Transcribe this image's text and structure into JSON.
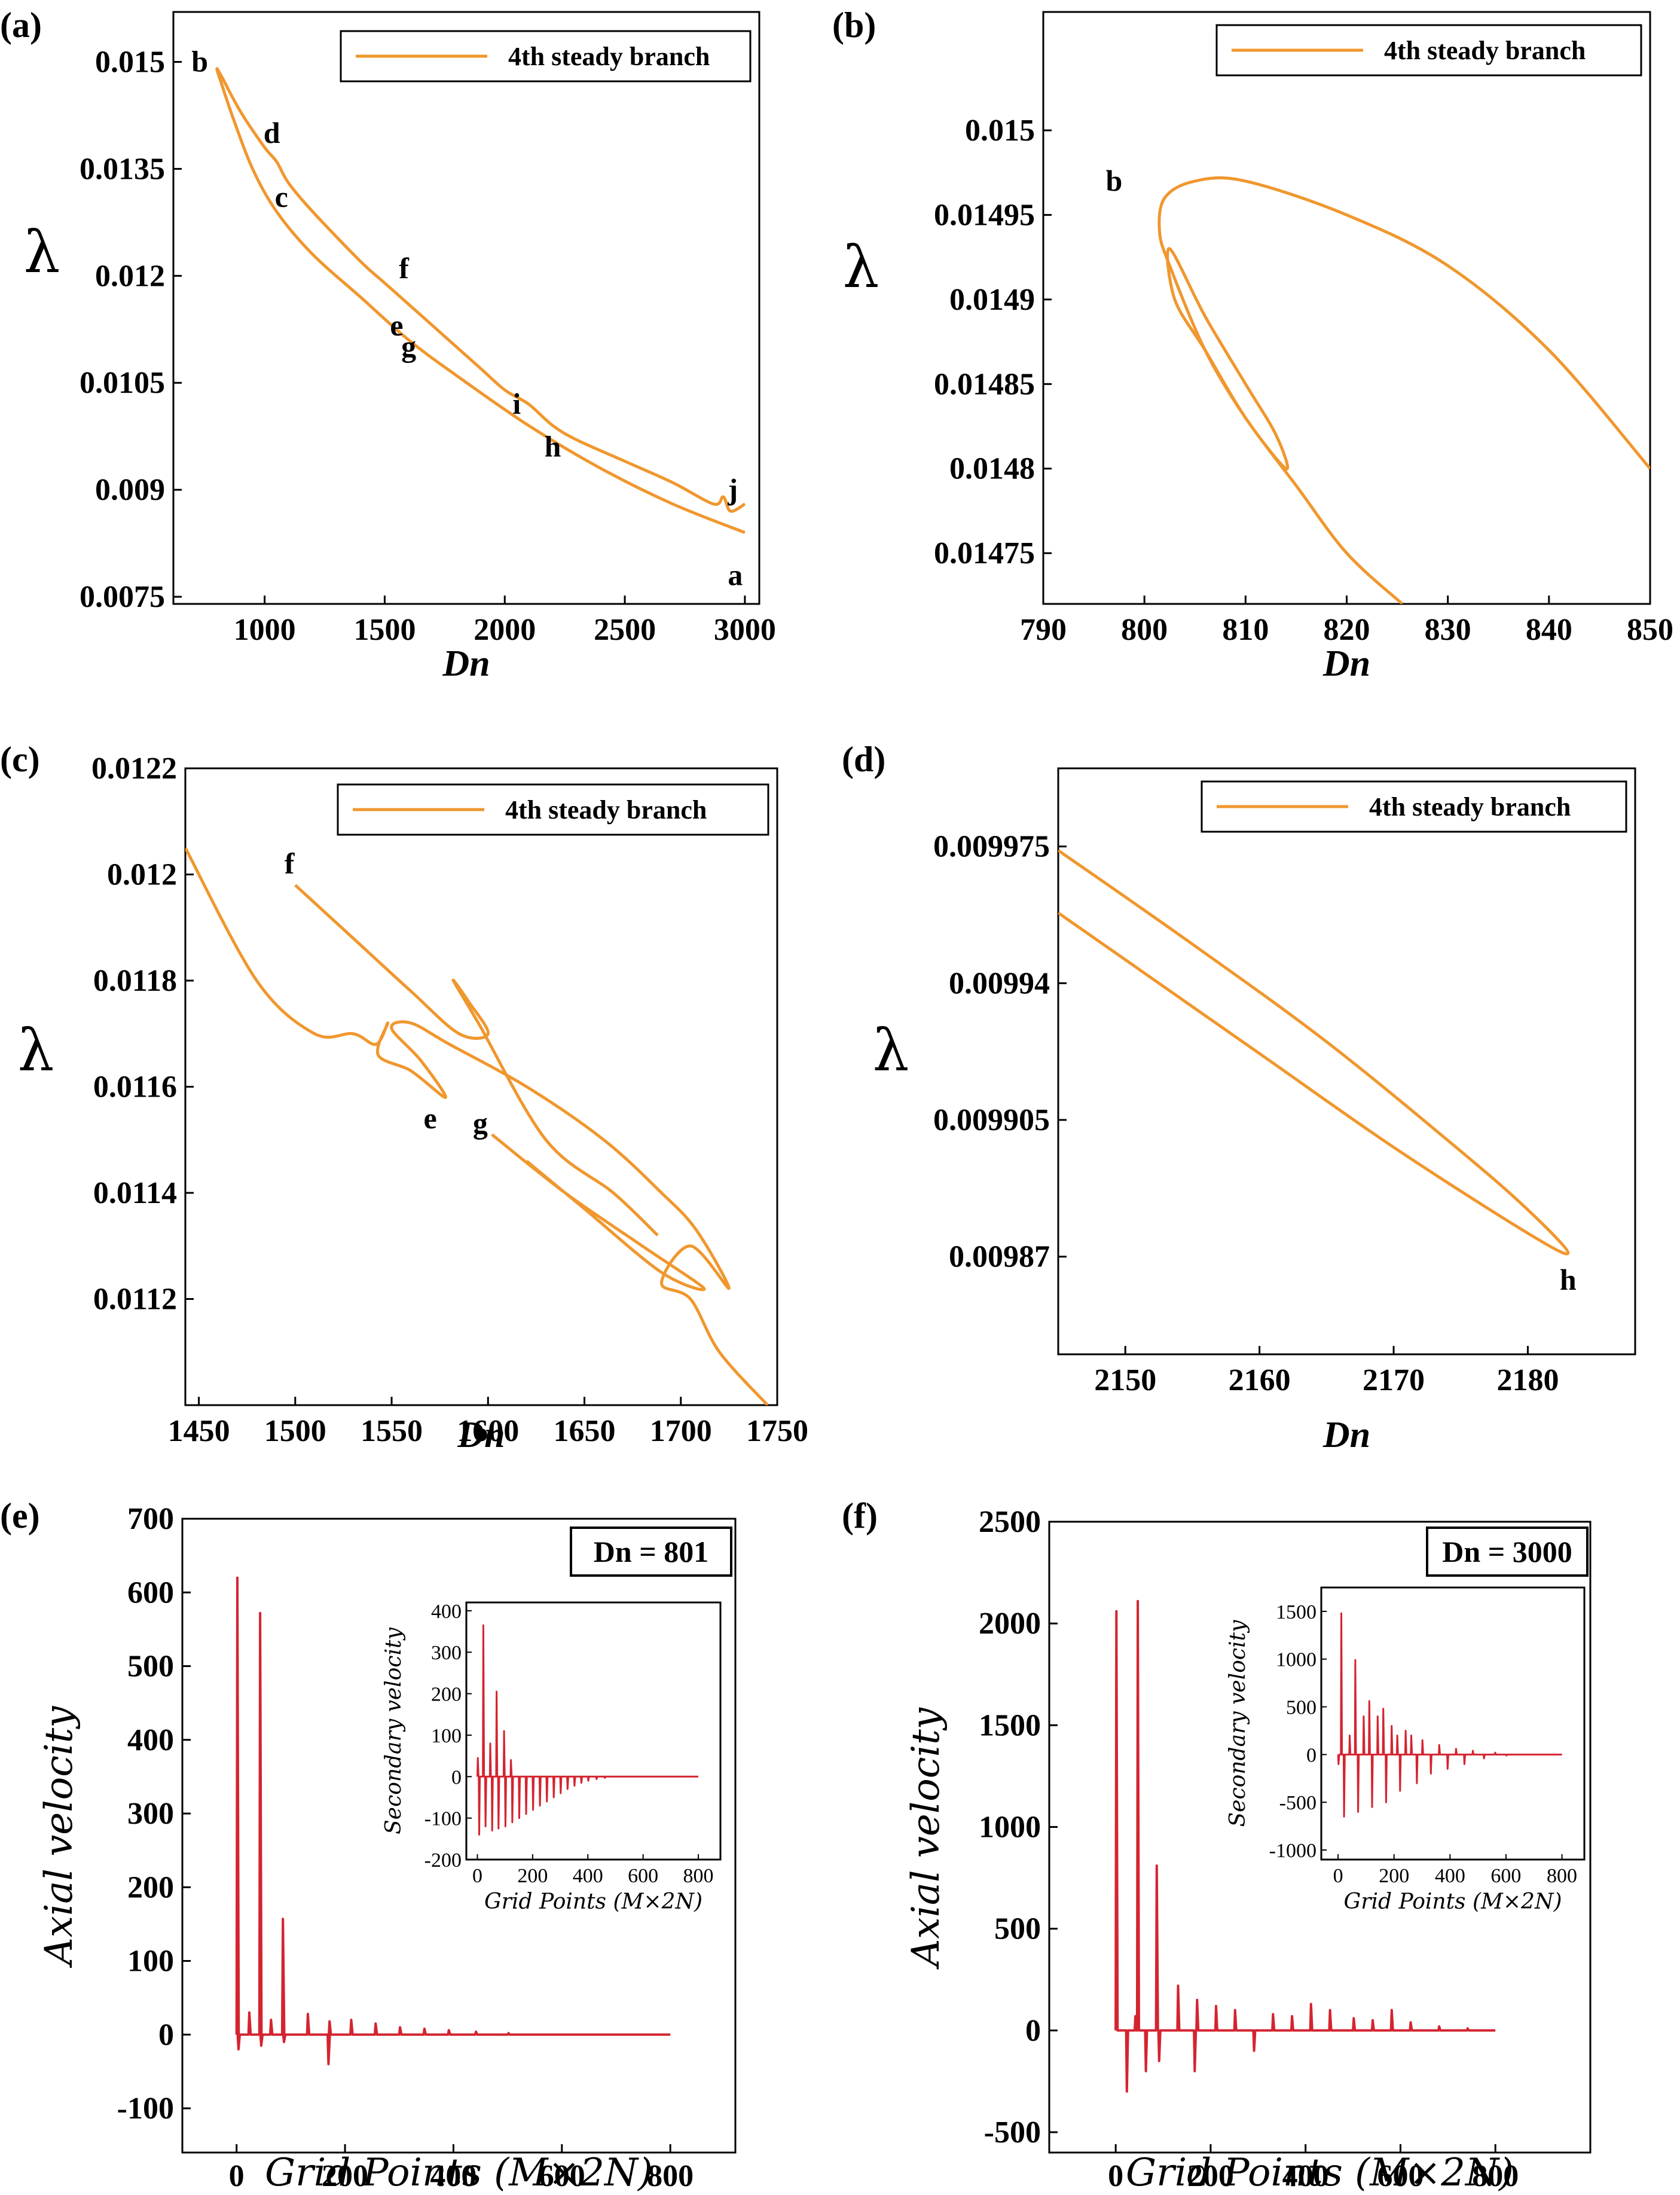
{
  "panels": [
    {
      "label": "(a)",
      "legend": "4th steady branch"
    },
    {
      "label": "(b)",
      "legend": "4th steady branch"
    },
    {
      "label": "(c)",
      "legend": "4th steady branch"
    },
    {
      "label": "(d)",
      "legend": "4th steady branch"
    },
    {
      "label": "(e)",
      "box": "Dn = 801"
    },
    {
      "label": "(f)",
      "box": "Dn = 3000"
    }
  ],
  "labels": {
    "lambda": "λ",
    "dn": "Dn",
    "axial": "Axial velocity",
    "grid": "Grid Points (M×2N)",
    "secondary": "Secondary velocity"
  },
  "colors": {
    "branch": "#F0972E",
    "velocity": "#D42430"
  },
  "chart_data": [
    {
      "type": "line",
      "panel": "(a)",
      "xlabel": "Dn",
      "ylabel": "λ",
      "xlim": [
        620,
        3060
      ],
      "ylim": [
        0.0074,
        0.0157
      ],
      "xticks": [
        1000,
        1500,
        2000,
        2500,
        3000
      ],
      "xtick_labels": [
        "1000",
        "1500",
        "2000",
        "2500",
        "3000"
      ],
      "yticks": [
        0.0075,
        0.009,
        0.0105,
        0.012,
        0.0135,
        0.015
      ],
      "ytick_labels": [
        "0.0075",
        "0.009",
        "0.0105",
        "0.012",
        "0.0135",
        "0.015"
      ],
      "legend": "4th steady branch",
      "series": [
        {
          "name": "4th steady branch",
          "x": [
            3000,
            2700,
            2400,
            2100,
            1800,
            1600,
            1400,
            1200,
            1050,
            950,
            870,
            820,
            801,
            820,
            900,
            1000,
            1050,
            1100,
            1200,
            1400,
            1500,
            1600,
            1700,
            1800,
            1900,
            2000,
            2100,
            2200,
            2300,
            2500,
            2700,
            2870,
            2910,
            2940,
            3000
          ],
          "y": [
            0.0084,
            0.0088,
            0.0093,
            0.0099,
            0.0106,
            0.0111,
            0.0117,
            0.0123,
            0.0129,
            0.0135,
            0.0142,
            0.0147,
            0.0149,
            0.0148,
            0.0143,
            0.0138,
            0.0136,
            0.0133,
            0.0129,
            0.0122,
            0.0119,
            0.0116,
            0.0113,
            0.011,
            0.0107,
            0.0104,
            0.0102,
            0.0099,
            0.0097,
            0.0094,
            0.0091,
            0.0088,
            0.0089,
            0.0087,
            0.0088
          ]
        }
      ],
      "annotations": [
        {
          "text": "a",
          "x": 2960,
          "y": 0.0078
        },
        {
          "text": "b",
          "x": 730,
          "y": 0.015
        },
        {
          "text": "c",
          "x": 1070,
          "y": 0.0131
        },
        {
          "text": "d",
          "x": 1030,
          "y": 0.014
        },
        {
          "text": "e",
          "x": 1550,
          "y": 0.0113
        },
        {
          "text": "f",
          "x": 1580,
          "y": 0.0121
        },
        {
          "text": "g",
          "x": 1600,
          "y": 0.011
        },
        {
          "text": "h",
          "x": 2200,
          "y": 0.0096
        },
        {
          "text": "i",
          "x": 2050,
          "y": 0.0102
        },
        {
          "text": "j",
          "x": 2950,
          "y": 0.009
        }
      ]
    },
    {
      "type": "line",
      "panel": "(b)",
      "xlabel": "Dn",
      "ylabel": "λ",
      "xlim": [
        790,
        850
      ],
      "ylim": [
        0.01472,
        0.01507
      ],
      "xticks": [
        790,
        800,
        810,
        820,
        830,
        840,
        850
      ],
      "xtick_labels": [
        "790",
        "800",
        "810",
        "820",
        "830",
        "840",
        "850"
      ],
      "yticks": [
        0.01475,
        0.0148,
        0.01485,
        0.0149,
        0.01495,
        0.015
      ],
      "ytick_labels": [
        "0.01475",
        "0.0148",
        "0.01485",
        "0.0149",
        "0.01495",
        "0.015"
      ],
      "legend": "4th steady branch",
      "series": [
        {
          "name": "4th steady branch",
          "x": [
            850,
            840,
            830,
            820,
            810,
            805,
            802,
            801.5,
            802.5,
            806,
            810,
            814,
            813,
            810,
            806,
            802.5,
            803,
            806,
            810,
            815,
            820,
            825.5
          ],
          "y": [
            0.0148,
            0.01487,
            0.01492,
            0.01495,
            0.01497,
            0.01497,
            0.01496,
            0.01494,
            0.01492,
            0.01487,
            0.01483,
            0.0148,
            0.01482,
            0.01485,
            0.01489,
            0.01493,
            0.0149,
            0.01487,
            0.01483,
            0.01479,
            0.01475,
            0.01472
          ]
        }
      ],
      "annotations": [
        {
          "text": "b",
          "x": 797,
          "y": 0.01497
        }
      ]
    },
    {
      "type": "line",
      "panel": "(c)",
      "xlabel": "Dn",
      "ylabel": "λ",
      "xlim": [
        1443,
        1750
      ],
      "ylim": [
        0.011,
        0.0122
      ],
      "xticks": [
        1450,
        1500,
        1550,
        1600,
        1650,
        1700,
        1750
      ],
      "xtick_labels": [
        "1450",
        "1500",
        "1550",
        "1600",
        "1650",
        "1700",
        "1750"
      ],
      "yticks": [
        0.0112,
        0.0114,
        0.0116,
        0.0118,
        0.012,
        0.0122
      ],
      "ytick_labels": [
        "0.0112",
        "0.0114",
        "0.0116",
        "0.0118",
        "0.012",
        "0.0122"
      ],
      "legend": "4th steady branch",
      "series": [
        {
          "name": "4th steady branch",
          "x": [
            1443,
            1480,
            1510,
            1530,
            1542,
            1548,
            1543,
            1560,
            1578,
            1565,
            1550,
            1560,
            1580,
            1620,
            1660,
            1690,
            1708,
            1725,
            1705,
            1690,
            1705,
            1720,
            1745
          ],
          "y": [
            0.01205,
            0.0118,
            0.0117,
            0.0117,
            0.01168,
            0.01172,
            0.01166,
            0.01163,
            0.01158,
            0.01165,
            0.01171,
            0.01172,
            0.01168,
            0.0116,
            0.0115,
            0.0114,
            0.01133,
            0.01122,
            0.0113,
            0.01123,
            0.0112,
            0.0111,
            0.011
          ]
        },
        {
          "name": "",
          "x": [
            1500,
            1530,
            1560,
            1585,
            1600,
            1590,
            1582,
            1595,
            1630,
            1665,
            1688
          ],
          "y": [
            0.01198,
            0.01188,
            0.01178,
            0.0117,
            0.0117,
            0.01176,
            0.0118,
            0.01172,
            0.0115,
            0.0114,
            0.01132
          ]
        },
        {
          "name": "",
          "x": [
            1602,
            1640,
            1680,
            1712,
            1690,
            1650,
            1620
          ],
          "y": [
            0.01151,
            0.0114,
            0.0113,
            0.01122,
            0.01125,
            0.01137,
            0.01146
          ]
        }
      ],
      "annotations": [
        {
          "text": "e",
          "x": 1570,
          "y": 0.01154
        },
        {
          "text": "f",
          "x": 1497,
          "y": 0.01202
        },
        {
          "text": "g",
          "x": 1596,
          "y": 0.01153
        }
      ]
    },
    {
      "type": "line",
      "panel": "(d)",
      "xlabel": "Dn",
      "ylabel": "λ",
      "xlim": [
        2145,
        2188
      ],
      "ylim": [
        0.009845,
        0.009995
      ],
      "xticks": [
        2150,
        2160,
        2170,
        2180
      ],
      "xtick_labels": [
        "2150",
        "2160",
        "2170",
        "2180"
      ],
      "yticks": [
        0.00987,
        0.009905,
        0.00994,
        0.009975
      ],
      "ytick_labels": [
        "0.00987",
        "0.009905",
        "0.00994",
        "0.009975"
      ],
      "legend": "4th steady branch",
      "series": [
        {
          "name": "4th steady branch",
          "x": [
            2145,
            2155,
            2165,
            2175,
            2180,
            2183,
            2180,
            2170,
            2160,
            2150,
            2145
          ],
          "y": [
            0.009974,
            0.00995,
            0.009925,
            0.009897,
            0.009882,
            0.009871,
            0.009876,
            0.009898,
            0.009922,
            0.009946,
            0.009958
          ]
        }
      ],
      "annotations": [
        {
          "text": "h",
          "x": 2183,
          "y": 0.009864
        }
      ]
    },
    {
      "type": "line",
      "panel": "(e)",
      "xlabel": "Grid Points (M×2N)",
      "ylabel": "Axial velocity",
      "xlim": [
        -100,
        920
      ],
      "ylim": [
        -160,
        700
      ],
      "xticks": [
        0,
        200,
        400,
        600,
        800
      ],
      "xtick_labels": [
        "0",
        "200",
        "400",
        "600",
        "800"
      ],
      "yticks": [
        -100,
        0,
        100,
        200,
        300,
        400,
        500,
        600,
        700
      ],
      "ytick_labels": [
        "-100",
        "0",
        "100",
        "200",
        "300",
        "400",
        "500",
        "600",
        "700"
      ],
      "box": "Dn = 801",
      "spikes": [
        [
          0,
          620
        ],
        [
          2,
          -20
        ],
        [
          22,
          30
        ],
        [
          42,
          572
        ],
        [
          44,
          -15
        ],
        [
          62,
          20
        ],
        [
          84,
          157
        ],
        [
          86,
          -10
        ],
        [
          130,
          28
        ],
        [
          168,
          -40
        ],
        [
          170,
          18
        ],
        [
          210,
          20
        ],
        [
          255,
          15
        ],
        [
          300,
          10
        ],
        [
          345,
          8
        ],
        [
          390,
          6
        ],
        [
          440,
          4
        ],
        [
          500,
          2
        ]
      ],
      "inset": {
        "xlabel": "Grid Points (M×2N)",
        "ylabel": "Secondary velocity",
        "xlim": [
          -40,
          880
        ],
        "ylim": [
          -200,
          420
        ],
        "xticks": [
          0,
          200,
          400,
          600,
          800
        ],
        "xtick_labels": [
          "0",
          "200",
          "400",
          "600",
          "800"
        ],
        "yticks": [
          -200,
          -100,
          0,
          100,
          200,
          300,
          400
        ],
        "ytick_labels": [
          "-200",
          "-100",
          "0",
          "100",
          "200",
          "300",
          "400"
        ],
        "spikes": [
          [
            0,
            45
          ],
          [
            5,
            -140
          ],
          [
            20,
            365
          ],
          [
            28,
            -120
          ],
          [
            45,
            80
          ],
          [
            52,
            -130
          ],
          [
            68,
            205
          ],
          [
            75,
            -125
          ],
          [
            95,
            110
          ],
          [
            100,
            -120
          ],
          [
            120,
            40
          ],
          [
            125,
            -110
          ],
          [
            150,
            -100
          ],
          [
            175,
            -90
          ],
          [
            200,
            -80
          ],
          [
            225,
            -70
          ],
          [
            250,
            -60
          ],
          [
            275,
            -50
          ],
          [
            300,
            -40
          ],
          [
            325,
            -30
          ],
          [
            350,
            -22
          ],
          [
            375,
            -15
          ],
          [
            400,
            -10
          ],
          [
            430,
            -6
          ],
          [
            460,
            -3
          ]
        ]
      }
    },
    {
      "type": "line",
      "panel": "(f)",
      "xlabel": "Grid Points (M×2N)",
      "ylabel": "Axial velocity",
      "xlim": [
        -140,
        1000
      ],
      "ylim": [
        -600,
        2500
      ],
      "xticks": [
        0,
        200,
        400,
        600,
        800
      ],
      "xtick_labels": [
        "0",
        "200",
        "400",
        "600",
        "800"
      ],
      "yticks": [
        -500,
        0,
        500,
        1000,
        1500,
        2000,
        2500
      ],
      "ytick_labels": [
        "-500",
        "0",
        "500",
        "1000",
        "1500",
        "2000",
        "2500"
      ],
      "box": "Dn = 3000",
      "spikes": [
        [
          0,
          2060
        ],
        [
          22,
          -300
        ],
        [
          40,
          70
        ],
        [
          45,
          2110
        ],
        [
          62,
          -200
        ],
        [
          85,
          810
        ],
        [
          90,
          -150
        ],
        [
          130,
          220
        ],
        [
          165,
          -200
        ],
        [
          170,
          150
        ],
        [
          210,
          120
        ],
        [
          250,
          100
        ],
        [
          290,
          -100
        ],
        [
          330,
          80
        ],
        [
          370,
          70
        ],
        [
          410,
          130
        ],
        [
          450,
          100
        ],
        [
          500,
          60
        ],
        [
          540,
          50
        ],
        [
          580,
          100
        ],
        [
          620,
          40
        ],
        [
          680,
          20
        ],
        [
          740,
          10
        ]
      ],
      "inset": {
        "xlabel": "Grid Points (M×2N)",
        "ylabel": "Secondary velocity",
        "xlim": [
          -60,
          880
        ],
        "ylim": [
          -1100,
          1750
        ],
        "xticks": [
          0,
          200,
          400,
          600,
          800
        ],
        "xtick_labels": [
          "0",
          "200",
          "400",
          "600",
          "800"
        ],
        "yticks": [
          -1000,
          -500,
          0,
          500,
          1000,
          1500
        ],
        "ytick_labels": [
          "-1000",
          "-500",
          "0",
          "500",
          "1000",
          "1500"
        ],
        "spikes": [
          [
            0,
            -100
          ],
          [
            10,
            1480
          ],
          [
            20,
            -650
          ],
          [
            40,
            200
          ],
          [
            60,
            990
          ],
          [
            70,
            -600
          ],
          [
            90,
            400
          ],
          [
            110,
            560
          ],
          [
            120,
            -550
          ],
          [
            140,
            400
          ],
          [
            160,
            480
          ],
          [
            170,
            -500
          ],
          [
            190,
            300
          ],
          [
            210,
            200
          ],
          [
            220,
            -380
          ],
          [
            240,
            250
          ],
          [
            260,
            200
          ],
          [
            280,
            -300
          ],
          [
            300,
            150
          ],
          [
            330,
            -200
          ],
          [
            360,
            100
          ],
          [
            390,
            -150
          ],
          [
            420,
            60
          ],
          [
            450,
            -100
          ],
          [
            480,
            40
          ],
          [
            520,
            -40
          ],
          [
            560,
            20
          ],
          [
            600,
            -10
          ]
        ]
      }
    }
  ]
}
